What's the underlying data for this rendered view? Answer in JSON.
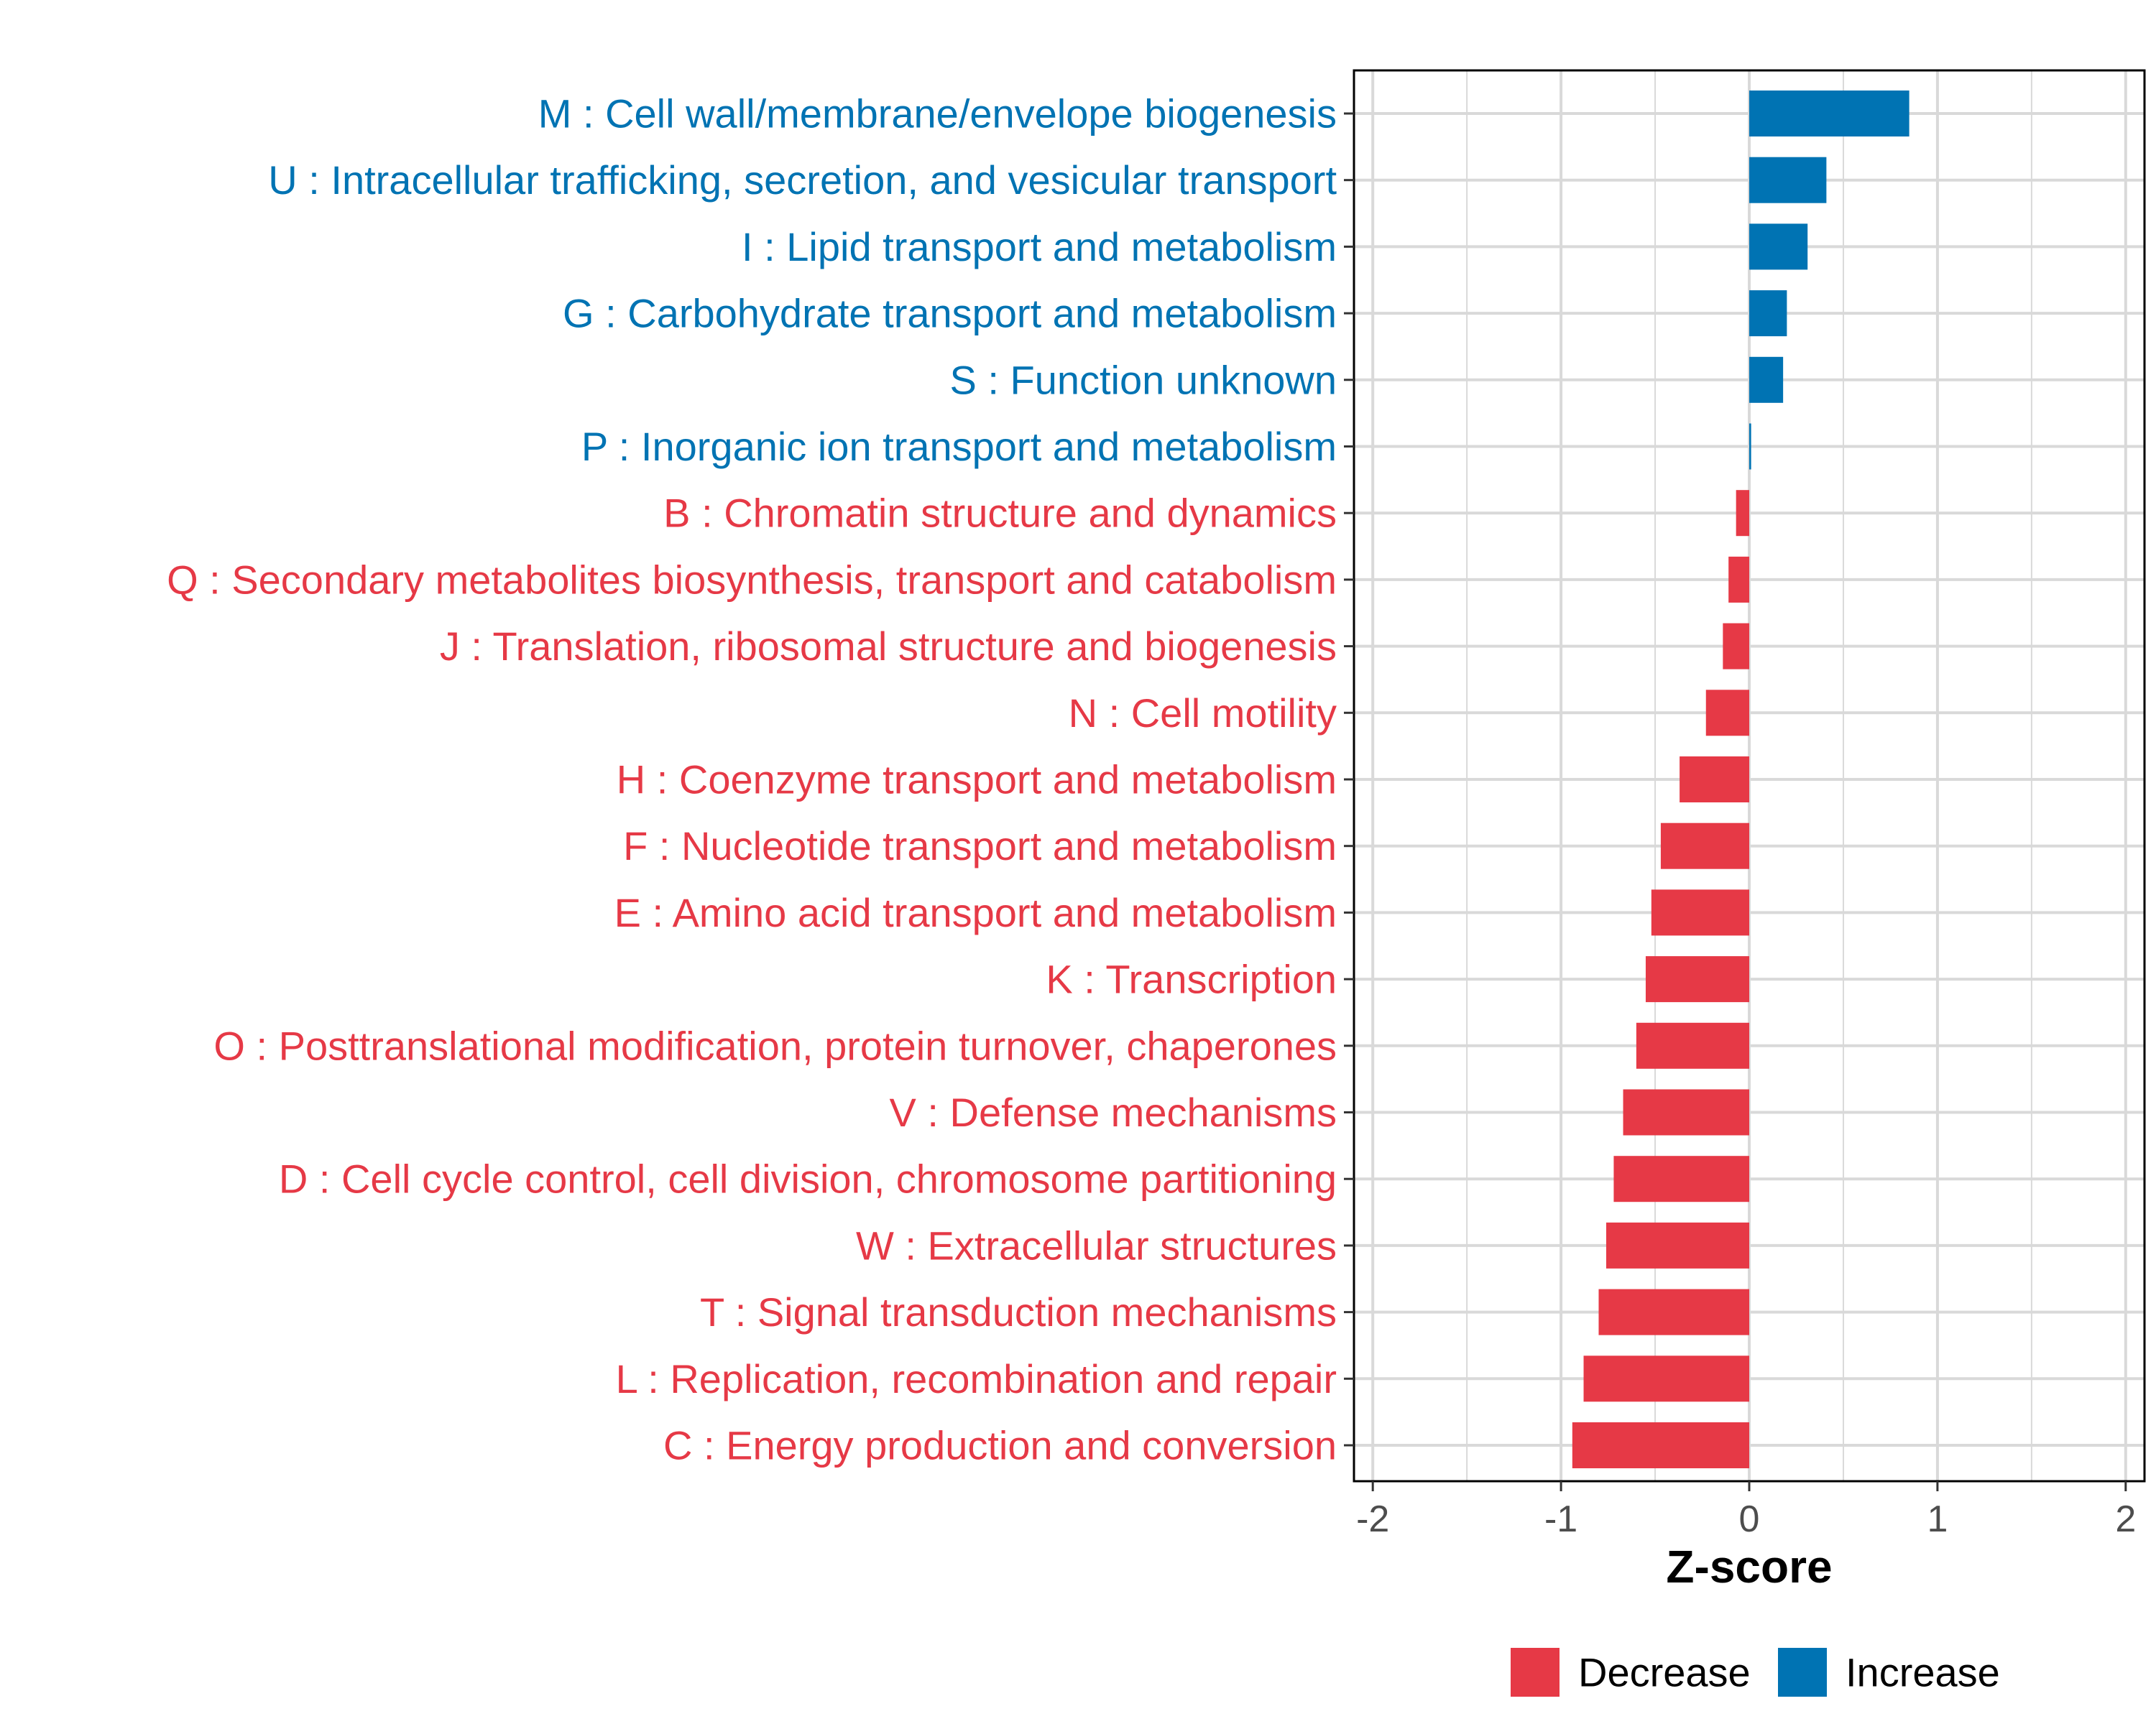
{
  "colors": {
    "increase": "#0073b3",
    "decrease": "#e63946",
    "grid": "#d9d9d9",
    "axis": "#000000"
  },
  "chart_data": {
    "type": "bar",
    "orientation": "horizontal",
    "title": "",
    "xlabel": "Z-score",
    "ylabel": "",
    "xlim": [
      -2.1,
      2.1
    ],
    "xticks": [
      -2,
      -1,
      0,
      1,
      2
    ],
    "xtick_labels": [
      "-2",
      "-1",
      "0",
      "1",
      "2"
    ],
    "grid": true,
    "legend_position": "bottom",
    "legend": [
      {
        "name": "Decrease",
        "color_key": "decrease"
      },
      {
        "name": "Increase",
        "color_key": "increase"
      }
    ],
    "categories": [
      "M : Cell wall/membrane/envelope biogenesis",
      "U : Intracellular trafficking, secretion, and vesicular transport",
      "I : Lipid transport and metabolism",
      "G : Carbohydrate transport and metabolism",
      "S : Function unknown",
      "P : Inorganic ion transport and metabolism",
      "B : Chromatin structure and dynamics",
      "Q : Secondary metabolites biosynthesis, transport and catabolism",
      "J : Translation, ribosomal structure and biogenesis",
      "N : Cell motility",
      "H : Coenzyme transport and metabolism",
      "F : Nucleotide transport and metabolism",
      "E : Amino acid transport and metabolism",
      "K : Transcription",
      "O : Posttranslational modification, protein turnover, chaperones",
      "V : Defense mechanisms",
      "D : Cell cycle control, cell division, chromosome partitioning",
      "W : Extracellular structures",
      "T : Signal transduction mechanisms",
      "L : Replication, recombination and repair",
      "C : Energy production and conversion"
    ],
    "values": [
      0.85,
      0.41,
      0.31,
      0.2,
      0.18,
      0.01,
      -0.07,
      -0.11,
      -0.14,
      -0.23,
      -0.37,
      -0.47,
      -0.52,
      -0.55,
      -0.6,
      -0.67,
      -0.72,
      -0.76,
      -0.8,
      -0.88,
      -0.94
    ],
    "groups": [
      "Increase",
      "Increase",
      "Increase",
      "Increase",
      "Increase",
      "Increase",
      "Decrease",
      "Decrease",
      "Decrease",
      "Decrease",
      "Decrease",
      "Decrease",
      "Decrease",
      "Decrease",
      "Decrease",
      "Decrease",
      "Decrease",
      "Decrease",
      "Decrease",
      "Decrease",
      "Decrease"
    ]
  }
}
